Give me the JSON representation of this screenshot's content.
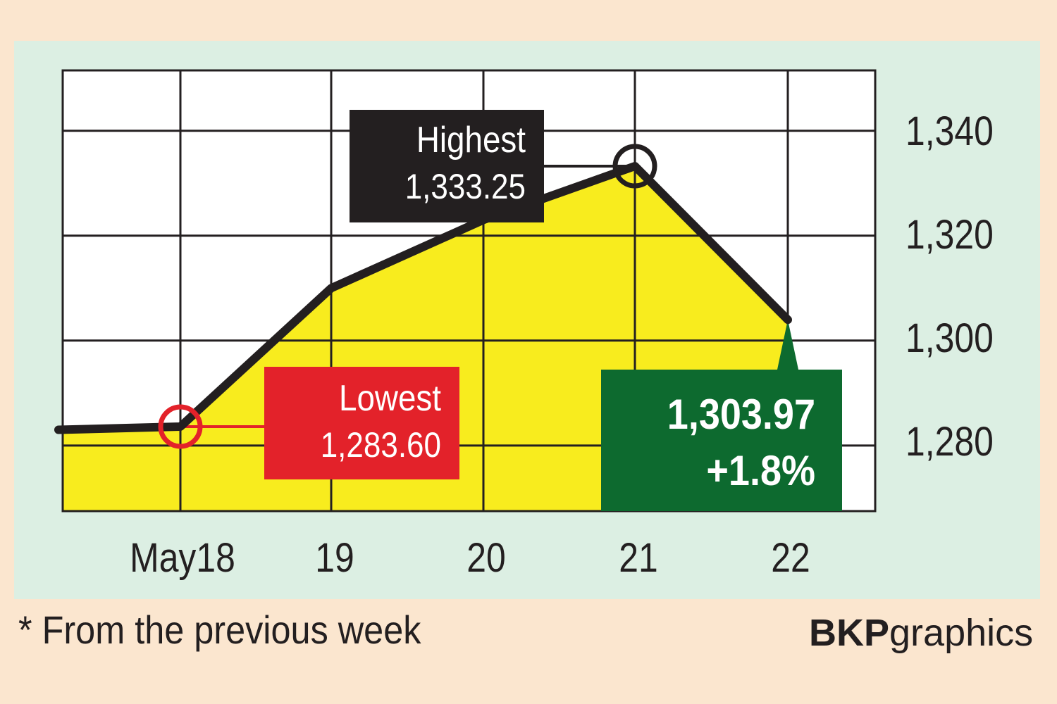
{
  "chart_data": {
    "type": "area",
    "x": [
      "",
      "May18",
      "19",
      "20",
      "21",
      "22"
    ],
    "values": [
      1283.0,
      1283.6,
      1310.0,
      1323.0,
      1333.25,
      1303.97
    ],
    "yticks": [
      "1,340",
      "1,320",
      "1,300",
      "1,280"
    ],
    "ytick_values": [
      1340,
      1320,
      1300,
      1280
    ],
    "xticks": [
      "May18",
      "19",
      "20",
      "21",
      "22"
    ],
    "ylim": [
      1267.5,
      1351.5
    ],
    "grid": true,
    "colors": {
      "fill": "#f8ec1e",
      "line": "#231f20",
      "plot_bg": "#ffffff",
      "lowest": "#e3222a",
      "highest": "#231f20",
      "latest": "#0d6a2f"
    },
    "annotations": {
      "highest": {
        "label": "Highest",
        "value": "1,333.25"
      },
      "lowest": {
        "label": "Lowest",
        "value": "1,283.60"
      },
      "latest": {
        "value": "1,303.97",
        "change": "+1.8%"
      }
    }
  },
  "footnote": "* From the previous week",
  "brand": {
    "bold": "BKP",
    "light": "graphics"
  }
}
